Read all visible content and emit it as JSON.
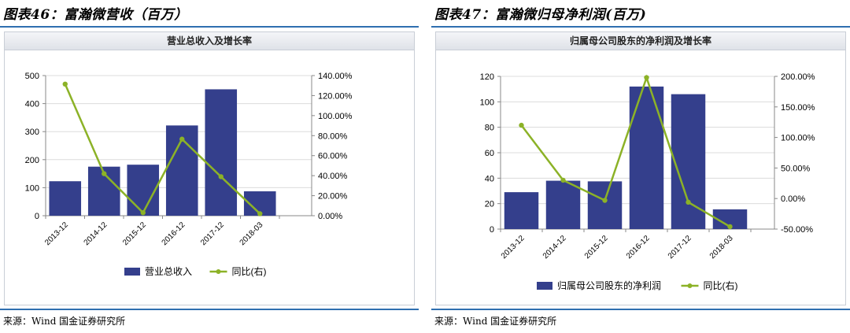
{
  "panels": [
    {
      "figure_title": "图表46：富瀚微营收（百万）",
      "source": "来源：Wind 国金证券研究所"
    },
    {
      "figure_title": "图表47：富瀚微归母净利润(百万)",
      "source": "来源：Wind 国金证券研究所"
    }
  ],
  "chart_data": [
    {
      "type": "bar",
      "title": "营业总收入及增长率",
      "categories": [
        "2013-12",
        "2014-12",
        "2015-12",
        "2016-12",
        "2017-12",
        "2018-03"
      ],
      "series": [
        {
          "name": "营业总收入",
          "type": "bar",
          "axis": "left",
          "values": [
            123,
            175,
            182,
            322,
            451,
            87
          ]
        },
        {
          "name": "同比(右)",
          "type": "line",
          "axis": "right",
          "values": [
            131.5,
            42.0,
            3.0,
            76.5,
            39.0,
            2.0
          ]
        }
      ],
      "y_left": {
        "min": 0,
        "max": 500,
        "ticks": [
          "0",
          "100",
          "200",
          "300",
          "400",
          "500"
        ]
      },
      "y_right": {
        "min": 0,
        "max": 140,
        "ticks": [
          "0.00%",
          "20.00%",
          "40.00%",
          "60.00%",
          "80.00%",
          "100.00%",
          "120.00%",
          "140.00%"
        ]
      },
      "legend_position": "bottom",
      "grid": true,
      "colors": {
        "bar": "#343f8c",
        "line": "#8cb227"
      }
    },
    {
      "type": "bar",
      "title": "归属母公司股东的净利润及增长率",
      "categories": [
        "2013-12",
        "2014-12",
        "2015-12",
        "2016-12",
        "2017-12",
        "2018-03"
      ],
      "series": [
        {
          "name": "归属母公司股东的净利润",
          "type": "bar",
          "axis": "left",
          "values": [
            29,
            38,
            37.5,
            112,
            106,
            15.5
          ]
        },
        {
          "name": "同比(右)",
          "type": "line",
          "axis": "right",
          "values": [
            120,
            30,
            -3,
            198,
            -6,
            -46
          ]
        }
      ],
      "y_left": {
        "min": 0,
        "max": 120,
        "ticks": [
          "0",
          "20",
          "40",
          "60",
          "80",
          "100",
          "120"
        ]
      },
      "y_right": {
        "min": -50,
        "max": 200,
        "ticks": [
          "-50.00%",
          "0.00%",
          "50.00%",
          "100.00%",
          "150.00%",
          "200.00%"
        ]
      },
      "legend_position": "bottom",
      "grid": true,
      "colors": {
        "bar": "#343f8c",
        "line": "#8cb227"
      }
    }
  ]
}
